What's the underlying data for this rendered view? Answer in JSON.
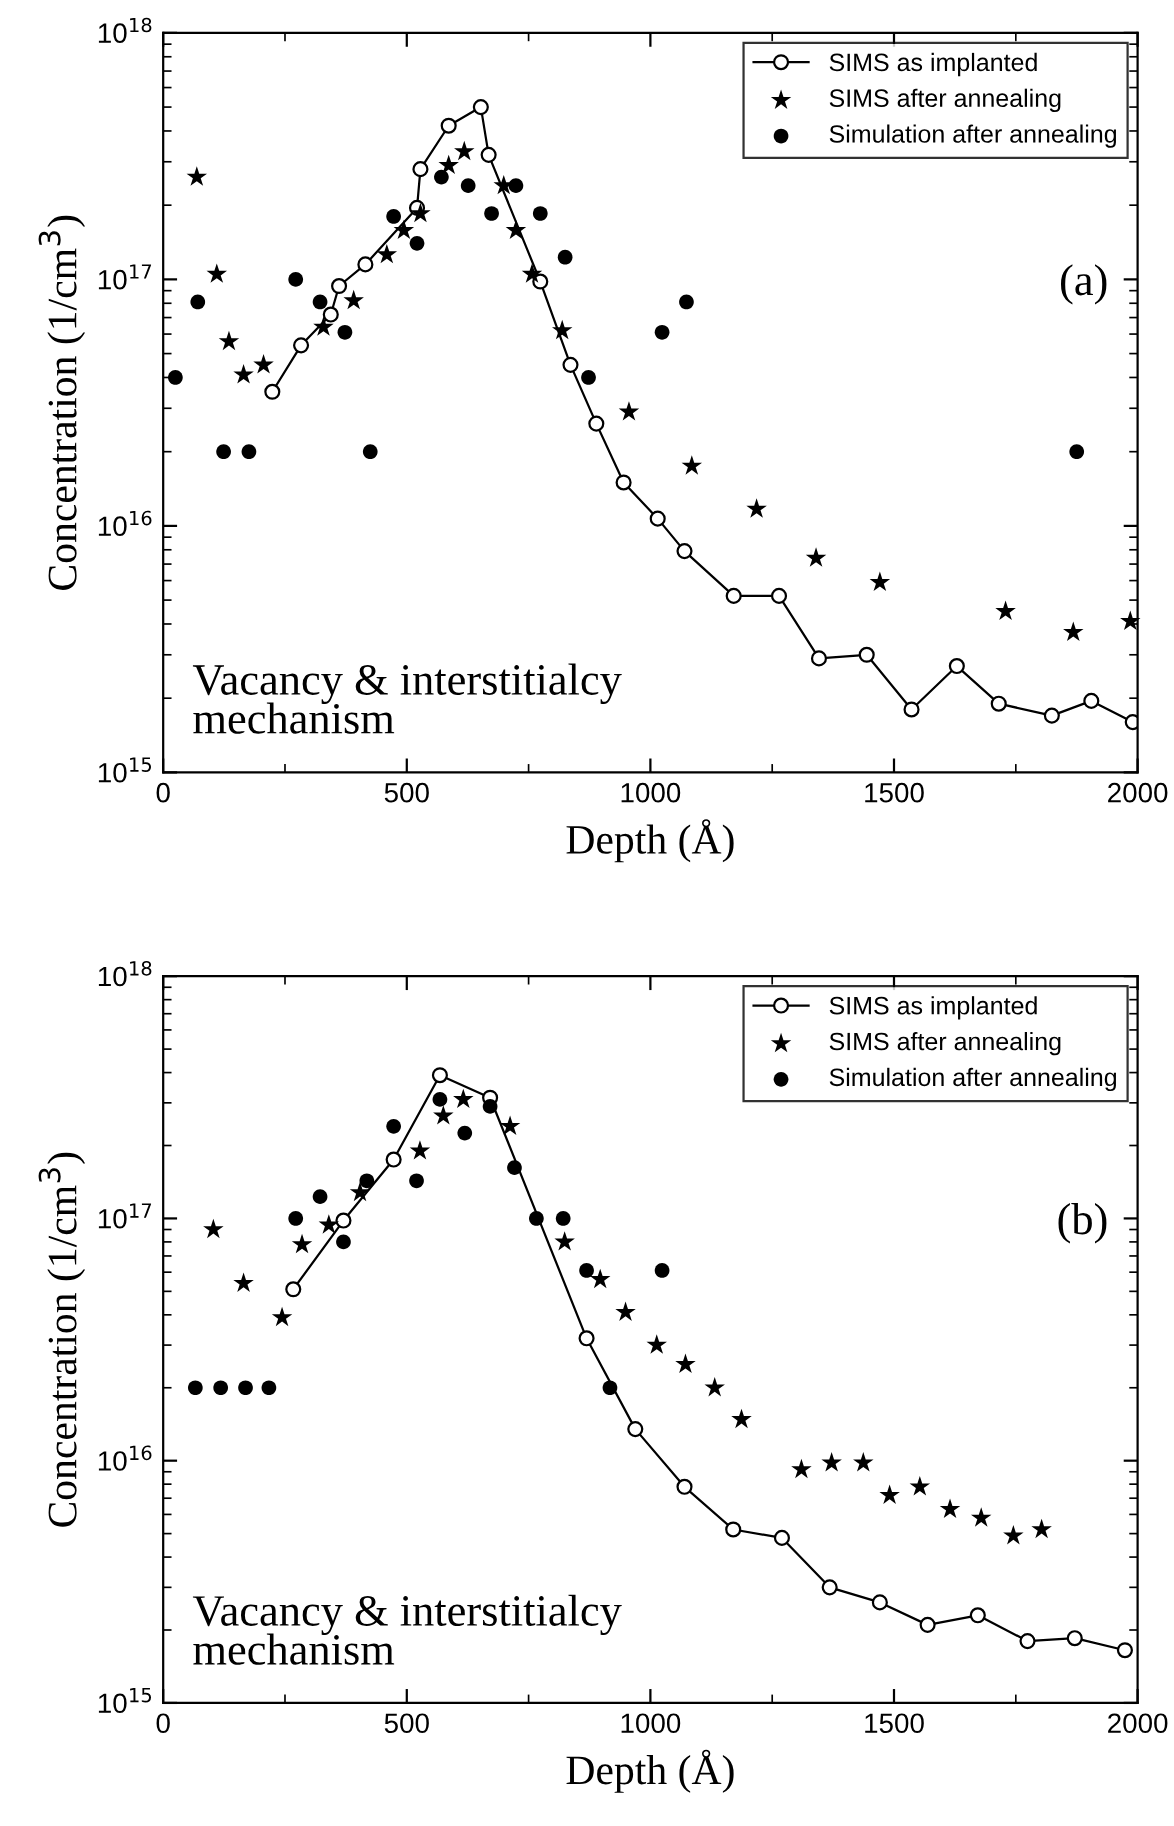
{
  "chart_data": [
    {
      "type": "scatter",
      "xlabel": "Depth (Å)",
      "ylabel": "Concentration (1/cm$^{3}$)",
      "log": "y",
      "grid": false,
      "legend": "top right",
      "xlim": [
        0,
        2000
      ],
      "xticks": [
        0,
        500,
        1000,
        1500,
        2000
      ],
      "ylim": [
        1000000000000000.0,
        1e+18
      ],
      "yticks": [
        {
          "value": 1000000000000000.0,
          "label": "10$^{15}$"
        },
        {
          "value": 1e+16,
          "label": "10$^{16}$"
        },
        {
          "value": 1e+17,
          "label": "10$^{17}$"
        },
        {
          "value": 1e+18,
          "label": "10$^{18}$"
        }
      ],
      "annotations": [
        "Vacancy & interstitialcy\nmechanism",
        "(a)"
      ],
      "series": [
        {
          "name": "SIMS as implanted",
          "type": "line",
          "marker": "circle",
          "color": "#000000",
          "x": [
            224,
            283,
            344,
            361,
            415,
            521,
            528,
            586,
            652,
            668,
            774,
            836,
            889,
            945,
            1015,
            1070,
            1171,
            1264,
            1346,
            1444,
            1536,
            1629,
            1715,
            1824,
            1905,
            1990
          ],
          "values": [
            3.5e+16,
            5.4e+16,
            7.2e+16,
            9.4e+16,
            1.15e+17,
            1.95e+17,
            2.8e+17,
            4.2e+17,
            5e+17,
            3.2e+17,
            9.8e+16,
            4.5e+16,
            2.6e+16,
            1.5e+16,
            1.07e+16,
            7900000000000000.0,
            5200000000000000.0,
            5200000000000000.0,
            2900000000000000.0,
            3000000000000000.0,
            1800000000000000.0,
            2700000000000000.0,
            1900000000000000.0,
            1700000000000000.0,
            1950000000000000.0,
            1600000000000000.0
          ]
        },
        {
          "name": "SIMS after annealing",
          "type": "scatter",
          "marker": "star",
          "color": "#000000",
          "x": [
            69,
            110,
            135,
            165,
            206,
            329,
            391,
            459,
            494,
            528,
            586,
            618,
            699,
            724,
            757,
            819,
            956,
            1085,
            1218,
            1340,
            1471,
            1729,
            1868,
            1985
          ],
          "values": [
            2.6e+17,
            1.05e+17,
            5.6e+16,
            4.1e+16,
            4.5e+16,
            6.4e+16,
            8.2e+16,
            1.26e+17,
            1.58e+17,
            1.85e+17,
            2.9e+17,
            3.3e+17,
            2.4e+17,
            1.58e+17,
            1.05e+17,
            6.2e+16,
            2.9e+16,
            1.75e+16,
            1.17e+16,
            7400000000000000.0,
            5900000000000000.0,
            4500000000000000.0,
            3700000000000000.0,
            4100000000000000.0
          ]
        },
        {
          "name": "Simulation after annealing",
          "type": "scatter",
          "marker": "circle",
          "color": "#000000",
          "x": [
            25,
            71,
            124,
            176,
            272,
            322,
            373,
            425,
            473,
            521,
            571,
            626,
            674,
            724,
            774,
            825,
            873,
            1024,
            1074,
            1875
          ],
          "values": [
            4e+16,
            8.1e+16,
            2e+16,
            2e+16,
            1e+17,
            8.1e+16,
            6.1e+16,
            2e+16,
            1.8e+17,
            1.4e+17,
            2.6e+17,
            2.4e+17,
            1.85e+17,
            2.4e+17,
            1.85e+17,
            1.23e+17,
            4e+16,
            6.1e+16,
            8.1e+16,
            2e+16
          ]
        }
      ]
    },
    {
      "type": "scatter",
      "xlabel": "Depth (Å)",
      "ylabel": "Concentration (1/cm$^{3}$)",
      "log": "y",
      "grid": false,
      "legend": "top right",
      "xlim": [
        0,
        2000
      ],
      "xticks": [
        0,
        500,
        1000,
        1500,
        2000
      ],
      "ylim": [
        1000000000000000.0,
        1e+18
      ],
      "yticks": [
        {
          "value": 1000000000000000.0,
          "label": "10$^{15}$"
        },
        {
          "value": 1e+16,
          "label": "10$^{16}$"
        },
        {
          "value": 1e+17,
          "label": "10$^{17}$"
        },
        {
          "value": 1e+18,
          "label": "10$^{18}$"
        }
      ],
      "annotations": [
        "Vacancy & interstitialcy\nmechanism",
        "(b)"
      ],
      "series": [
        {
          "name": "SIMS as implanted",
          "type": "line",
          "marker": "circle",
          "color": "#000000",
          "x": [
            267,
            370,
            473,
            568,
            671,
            869,
            969,
            1070,
            1170,
            1270,
            1368,
            1471,
            1569,
            1672,
            1774,
            1871,
            1974
          ],
          "values": [
            5.1e+16,
            9.8e+16,
            1.75e+17,
            3.9e+17,
            3.15e+17,
            3.2e+16,
            1.35e+16,
            7800000000000000.0,
            5200000000000000.0,
            4800000000000000.0,
            3000000000000000.0,
            2600000000000000.0,
            2100000000000000.0,
            2300000000000000.0,
            1800000000000000.0,
            1850000000000000.0,
            1650000000000000.0
          ]
        },
        {
          "name": "SIMS after annealing",
          "type": "scatter",
          "marker": "star",
          "color": "#000000",
          "x": [
            103,
            165,
            244,
            285,
            340,
            404,
            527,
            575,
            616,
            712,
            824,
            897,
            949,
            1013,
            1072,
            1132,
            1187,
            1310,
            1372,
            1437,
            1491,
            1553,
            1615,
            1679,
            1745,
            1803
          ],
          "values": [
            9e+16,
            5.4e+16,
            3.9e+16,
            7.8e+16,
            9.4e+16,
            1.28e+17,
            1.9e+17,
            2.65e+17,
            3.1e+17,
            2.4e+17,
            8e+16,
            5.6e+16,
            4.1e+16,
            3e+16,
            2.5e+16,
            2e+16,
            1.48e+16,
            9200000000000000.0,
            9800000000000000.0,
            9800000000000000.0,
            7200000000000000.0,
            7800000000000000.0,
            6300000000000000.0,
            5800000000000000.0,
            4900000000000000.0,
            5200000000000000.0
          ]
        },
        {
          "name": "Simulation after annealing",
          "type": "scatter",
          "marker": "circle",
          "color": "#000000",
          "x": [
            66,
            118,
            169,
            217,
            272,
            322,
            370,
            418,
            473,
            520,
            568,
            619,
            671,
            721,
            766,
            821,
            869,
            917,
            1024
          ],
          "values": [
            2e+16,
            2e+16,
            2e+16,
            2e+16,
            1e+17,
            1.23e+17,
            8e+16,
            1.43e+17,
            2.4e+17,
            1.43e+17,
            3.1e+17,
            2.25e+17,
            2.9e+17,
            1.62e+17,
            1e+17,
            1e+17,
            6.1e+16,
            2e+16,
            6.1e+16
          ]
        }
      ]
    }
  ]
}
